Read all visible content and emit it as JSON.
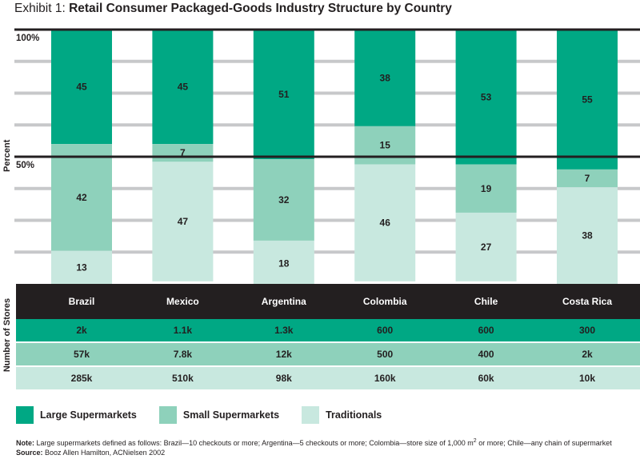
{
  "title": {
    "lead": "Exhibit 1: ",
    "main": "Retail Consumer Packaged-Goods Industry Structure by Country"
  },
  "colors": {
    "large": "#00a884",
    "small": "#8ed1bb",
    "traditional": "#c8e8df",
    "header": "#231f20"
  },
  "chart_data": {
    "type": "bar",
    "stacked": true,
    "categories": [
      "Brazil",
      "Mexico",
      "Argentina",
      "Colombia",
      "Chile",
      "Costa Rica"
    ],
    "series": [
      {
        "name": "Large Supermarkets",
        "values": [
          45,
          45,
          51,
          38,
          53,
          55
        ]
      },
      {
        "name": "Small Supermarkets",
        "values": [
          42,
          7,
          32,
          15,
          19,
          7
        ]
      },
      {
        "name": "Traditionals",
        "values": [
          13,
          47,
          18,
          46,
          27,
          38
        ]
      }
    ],
    "ylabel": "Percent",
    "ylim": [
      0,
      100
    ],
    "yticks": [
      {
        "value": 100,
        "label": "100%"
      },
      {
        "value": 50,
        "label": "50%"
      }
    ],
    "grid": true,
    "legend": "bottom"
  },
  "stores": {
    "label": "Number of Stores",
    "rows": [
      [
        "2k",
        "1.1k",
        "1.3k",
        "600",
        "600",
        "300"
      ],
      [
        "57k",
        "7.8k",
        "12k",
        "500",
        "400",
        "2k"
      ],
      [
        "285k",
        "510k",
        "98k",
        "160k",
        "60k",
        "10k"
      ]
    ]
  },
  "footnote": {
    "note_label": "Note:",
    "note_text": "Large supermarkets defined as follows: Brazil—10 checkouts or more; Argentina—5 checkouts or more; Colombia—store size of 1,000 m",
    "note_sup": "2",
    "note_text_end": " or more; Chile—any chain of supermarket",
    "source_label": "Source:",
    "source_text": "Booz Allen Hamilton, ACNielsen 2002"
  }
}
